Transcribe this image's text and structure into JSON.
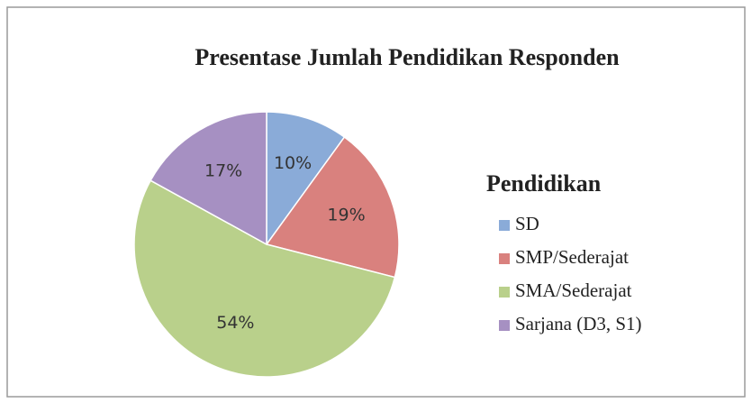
{
  "chart_data": {
    "type": "pie",
    "title": "Presentase Jumlah Pendidikan Responden",
    "legend_title": "Pendidikan",
    "categories": [
      "SD",
      "SMP/Sederajat",
      "SMA/Sederajat",
      "Sarjana (D3, S1)"
    ],
    "values": [
      10,
      19,
      54,
      17
    ],
    "value_labels": [
      "10%",
      "19%",
      "54%",
      "17%"
    ],
    "colors": [
      "#8aabd8",
      "#d9817e",
      "#b9d08b",
      "#a690c2"
    ],
    "legend": "right"
  }
}
